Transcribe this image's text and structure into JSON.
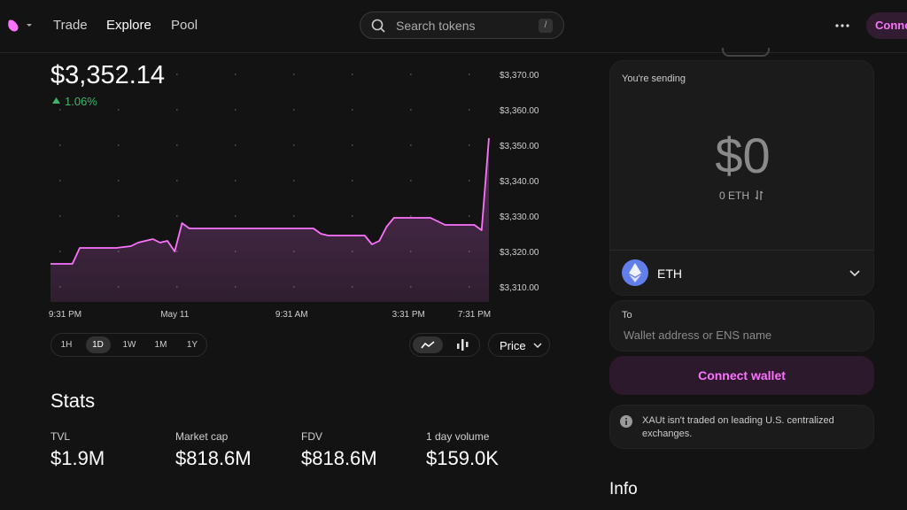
{
  "nav": {
    "links": [
      "Trade",
      "Explore",
      "Pool"
    ],
    "search_placeholder": "Search tokens",
    "search_shortcut": "/",
    "connect": "Connect"
  },
  "token": {
    "price": "$3,352.14",
    "change": "1.06%"
  },
  "chart_data": {
    "type": "area",
    "color": "#fc72ff",
    "categories": [
      null,
      null,
      "9:31 PM",
      null,
      null,
      null,
      null,
      null,
      null,
      null,
      null,
      null,
      null,
      null,
      null,
      null,
      null,
      "May 11",
      null,
      null,
      null,
      null,
      null,
      null,
      null,
      null,
      null,
      null,
      null,
      null,
      null,
      null,
      null,
      "9:31 AM",
      null,
      null,
      null,
      null,
      null,
      null,
      null,
      null,
      null,
      null,
      null,
      null,
      null,
      null,
      null,
      "3:31 PM",
      null,
      null,
      null,
      null,
      null,
      null,
      null,
      null,
      "7:31 PM",
      null,
      null
    ],
    "values": [
      3316.5,
      3316.5,
      3316.5,
      3316.5,
      3321,
      3321,
      3321,
      3321,
      3321,
      3321,
      3321.25,
      3321.5,
      3322.5,
      3323,
      3323.5,
      3322.5,
      3323,
      3320,
      3328,
      3326.5,
      3326.5,
      3326.5,
      3326.5,
      3326.5,
      3326.5,
      3326.5,
      3326.5,
      3326.5,
      3326.5,
      3326.5,
      3326.5,
      3326.5,
      3326.5,
      3326.5,
      3326.5,
      3326.5,
      3326.5,
      3325,
      3324.5,
      3324.5,
      3324.5,
      3324.5,
      3324.5,
      3324.5,
      3322,
      3323,
      3327,
      3329.5,
      3329.5,
      3329.5,
      3329.5,
      3329.5,
      3329.5,
      3328.5,
      3327.5,
      3327.5,
      3327.5,
      3327.5,
      3327.5,
      3326,
      3352
    ],
    "ylim": [
      3305.75,
      3373.5
    ],
    "yticks": [
      {
        "value": 3310,
        "label": "$3,310.00"
      },
      {
        "value": 3320,
        "label": "$3,320.00"
      },
      {
        "value": 3330,
        "label": "$3,330.00"
      },
      {
        "value": 3340,
        "label": "$3,340.00"
      },
      {
        "value": 3350,
        "label": "$3,350.00"
      },
      {
        "value": 3360,
        "label": "$3,360.00"
      },
      {
        "value": 3370,
        "label": "$3,370.00"
      }
    ],
    "grid": true
  },
  "range_options": [
    "1H",
    "1D",
    "1W",
    "1M",
    "1Y"
  ],
  "selected_range": 1,
  "price_selector": "Price",
  "stats": {
    "title": "Stats",
    "items": [
      {
        "label": "TVL",
        "value": "$1.9M"
      },
      {
        "label": "Market cap",
        "value": "$818.6M"
      },
      {
        "label": "FDV",
        "value": "$818.6M"
      },
      {
        "label": "1 day volume",
        "value": "$159.0K"
      }
    ]
  },
  "swap": {
    "sending_label": "You're sending",
    "amount": "$0",
    "amount_token": "0 ETH",
    "token": "ETH",
    "to_label": "To",
    "address_placeholder": "Wallet address or ENS name",
    "button": "Connect wallet",
    "notice": "XAUt isn't traded on leading U.S. centralized exchanges."
  },
  "info_title": "Info"
}
